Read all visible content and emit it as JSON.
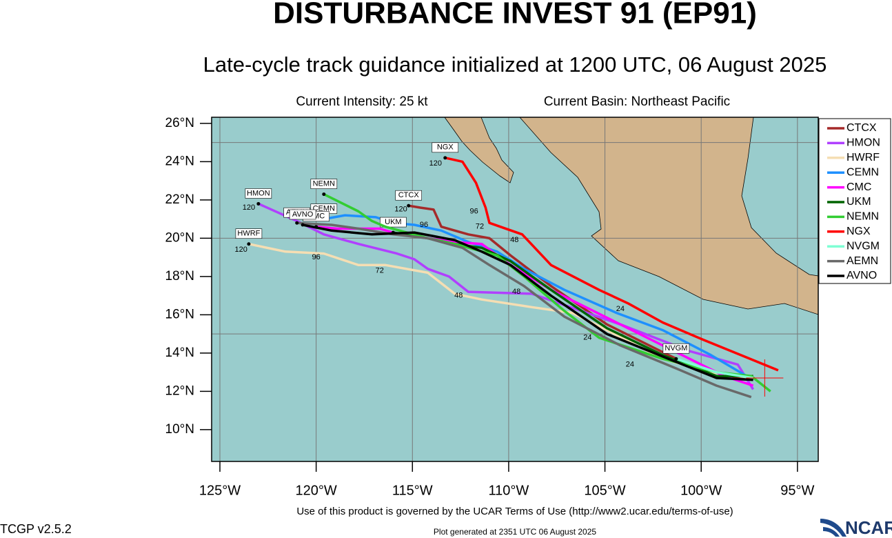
{
  "chart_data": {
    "type": "track_map",
    "title": "DISTURBANCE INVEST 91 (EP91)",
    "subtitle": "Late-cycle track guidance initialized at 1200 UTC, 06 August 2025",
    "intensity": "Current Intensity: 25 kt",
    "basin": "Current Basin: Northeast Pacific",
    "xlim": [
      -125.43,
      -93.92
    ],
    "ylim": [
      8.34,
      26.32
    ],
    "xticks": [
      {
        "value": -125,
        "label": "125°W"
      },
      {
        "value": -120,
        "label": "120°W"
      },
      {
        "value": -115,
        "label": "115°W"
      },
      {
        "value": -110,
        "label": "110°W"
      },
      {
        "value": -105,
        "label": "105°W"
      },
      {
        "value": -100,
        "label": "100°W"
      },
      {
        "value": -95,
        "label": "95°W"
      }
    ],
    "yticks": [
      {
        "value": 10,
        "label": "10°N"
      },
      {
        "value": 12,
        "label": "12°N"
      },
      {
        "value": 14,
        "label": "14°N"
      },
      {
        "value": 16,
        "label": "16°N"
      },
      {
        "value": 18,
        "label": "18°N"
      },
      {
        "value": 20,
        "label": "20°N"
      },
      {
        "value": 22,
        "label": "22°N"
      },
      {
        "value": 24,
        "label": "24°N"
      },
      {
        "value": 26,
        "label": "26°N"
      }
    ],
    "ygrid": [
      15,
      20,
      25
    ],
    "series": [
      {
        "name": "CTCX",
        "color": "#a52a2a",
        "x": [
          -97.3,
          -99.4,
          -101.7,
          -104.9,
          -107.8,
          -109.9,
          -111.0,
          -112.1,
          -113.5,
          -113.9,
          -114.6,
          -115.2
        ],
        "values": [
          12.7,
          12.8,
          13.9,
          15.5,
          17.5,
          19.1,
          20.0,
          20.2,
          20.6,
          21.5,
          21.6,
          21.7
        ]
      },
      {
        "name": "HMON",
        "color": "#b040ff",
        "x": [
          -97.3,
          -98.1,
          -100.6,
          -104.2,
          -108.8,
          -112.1,
          -113.1,
          -114.2,
          -114.9,
          -115.8,
          -117.8,
          -119.6,
          -121.0,
          -123.0
        ],
        "values": [
          12.1,
          13.4,
          14.1,
          15.5,
          17.1,
          17.2,
          18.0,
          18.4,
          18.9,
          19.2,
          19.7,
          20.2,
          20.9,
          21.8
        ]
      },
      {
        "name": "HWRF",
        "color": "#f5deb3",
        "x": [
          -97.3,
          -99.5,
          -102.0,
          -104.9,
          -106.7,
          -108.8,
          -111.4,
          -112.8,
          -114.2,
          -116.4,
          -117.8,
          -119.6,
          -121.6,
          -123.5
        ],
        "values": [
          12.7,
          13.0,
          13.7,
          15.2,
          16.1,
          16.4,
          16.8,
          17.1,
          18.2,
          18.6,
          18.6,
          19.2,
          19.3,
          19.7
        ]
      },
      {
        "name": "CEMN",
        "color": "#1e90ff",
        "x": [
          -97.3,
          -99.5,
          -102.0,
          -104.4,
          -107.1,
          -109.2,
          -110.6,
          -112.1,
          -113.5,
          -114.9,
          -116.0,
          -116.9,
          -118.5,
          -119.6
        ],
        "values": [
          12.6,
          13.9,
          15.2,
          16.1,
          17.3,
          18.4,
          19.3,
          19.8,
          20.4,
          20.7,
          20.8,
          21.1,
          21.2,
          21.0
        ]
      },
      {
        "name": "CMC",
        "color": "#ff00ff",
        "x": [
          -97.3,
          -98.8,
          -101.0,
          -104.2,
          -107.8,
          -109.9,
          -111.4,
          -112.8,
          -114.2,
          -115.7,
          -116.7,
          -117.8,
          -118.9,
          -120.0
        ],
        "values": [
          12.3,
          12.8,
          13.9,
          15.5,
          17.3,
          18.6,
          19.7,
          19.8,
          20.0,
          20.2,
          20.5,
          20.5,
          20.5,
          20.6
        ]
      },
      {
        "name": "UKM",
        "color": "#006400",
        "x": [
          -97.3,
          -99.2,
          -102.0,
          -104.9,
          -107.8,
          -109.9,
          -111.4,
          -112.8,
          -114.2,
          -116.0
        ],
        "values": [
          12.8,
          12.8,
          13.9,
          15.3,
          17.3,
          18.8,
          19.5,
          19.7,
          20.0,
          20.3
        ]
      },
      {
        "name": "NEMN",
        "color": "#32cd32",
        "x": [
          -96.4,
          -97.4,
          -99.2,
          -102.0,
          -105.3,
          -107.1,
          -109.2,
          -110.6,
          -112.8,
          -114.2,
          -116.4,
          -117.1,
          -117.8,
          -119.6
        ],
        "values": [
          12.0,
          12.8,
          13.0,
          13.7,
          14.8,
          16.2,
          18.0,
          19.1,
          19.7,
          20.0,
          20.6,
          20.9,
          21.4,
          22.3
        ]
      },
      {
        "name": "NGX",
        "color": "#ff0000",
        "x": [
          -96.0,
          -97.7,
          -99.9,
          -102.0,
          -103.8,
          -105.3,
          -107.8,
          -109.3,
          -111.0,
          -111.2,
          -111.7,
          -112.4,
          -113.3
        ],
        "values": [
          13.1,
          13.8,
          14.7,
          15.6,
          16.6,
          17.3,
          18.6,
          20.2,
          20.8,
          21.6,
          22.9,
          24.0,
          24.2
        ]
      },
      {
        "name": "NVGM",
        "color": "#7fffd4",
        "x": [
          -97.3,
          -99.2,
          -101.3
        ],
        "values": [
          12.7,
          13.0,
          13.7
        ]
      },
      {
        "name": "AEMN",
        "color": "#696969",
        "x": [
          -97.4,
          -99.2,
          -101.3,
          -104.2,
          -107.1,
          -109.2,
          -111.0,
          -112.4,
          -114.2,
          -116.0,
          -117.8,
          -119.2,
          -121.0
        ],
        "values": [
          11.7,
          12.3,
          13.2,
          14.4,
          15.9,
          17.5,
          18.6,
          19.5,
          20.0,
          20.2,
          20.5,
          20.7,
          20.8
        ]
      },
      {
        "name": "AVNO",
        "color": "#000000",
        "x": [
          -97.3,
          -99.2,
          -101.7,
          -104.9,
          -107.8,
          -109.9,
          -111.4,
          -112.8,
          -114.9,
          -117.1,
          -119.2,
          -120.7
        ],
        "values": [
          12.6,
          12.7,
          13.7,
          15.0,
          17.0,
          18.6,
          19.3,
          19.9,
          20.3,
          20.2,
          20.4,
          20.7
        ]
      }
    ],
    "hour_labels": [
      {
        "text": "120",
        "lon": -123.5,
        "lat": 21.6
      },
      {
        "text": "120",
        "lon": -123.9,
        "lat": 19.4
      },
      {
        "text": "96",
        "lon": -120.0,
        "lat": 19.0
      },
      {
        "text": "96",
        "lon": -114.4,
        "lat": 20.7
      },
      {
        "text": "72",
        "lon": -111.5,
        "lat": 20.6
      },
      {
        "text": "48",
        "lon": -109.7,
        "lat": 19.9
      },
      {
        "text": "120",
        "lon": -115.6,
        "lat": 21.5
      },
      {
        "text": "72",
        "lon": -116.7,
        "lat": 18.3
      },
      {
        "text": "48",
        "lon": -112.6,
        "lat": 17.0
      },
      {
        "text": "48",
        "lon": -109.6,
        "lat": 17.2
      },
      {
        "text": "24",
        "lon": -104.2,
        "lat": 16.3
      },
      {
        "text": "24",
        "lon": -103.7,
        "lat": 13.4
      },
      {
        "text": "24",
        "lon": -105.9,
        "lat": 14.8
      },
      {
        "text": "96",
        "lon": -111.8,
        "lat": 21.4
      },
      {
        "text": "120",
        "lon": -113.8,
        "lat": 23.9
      }
    ],
    "current_position": {
      "lon": -96.7,
      "lat": 12.7
    },
    "terms": "Use of this product is governed by the UCAR Terms of Use (http://www2.ucar.edu/terms-of-use)",
    "version": "TCGP v2.5.2",
    "generated": "Plot generated at 2351 UTC   06 August 2025",
    "logo": "NCAR"
  }
}
